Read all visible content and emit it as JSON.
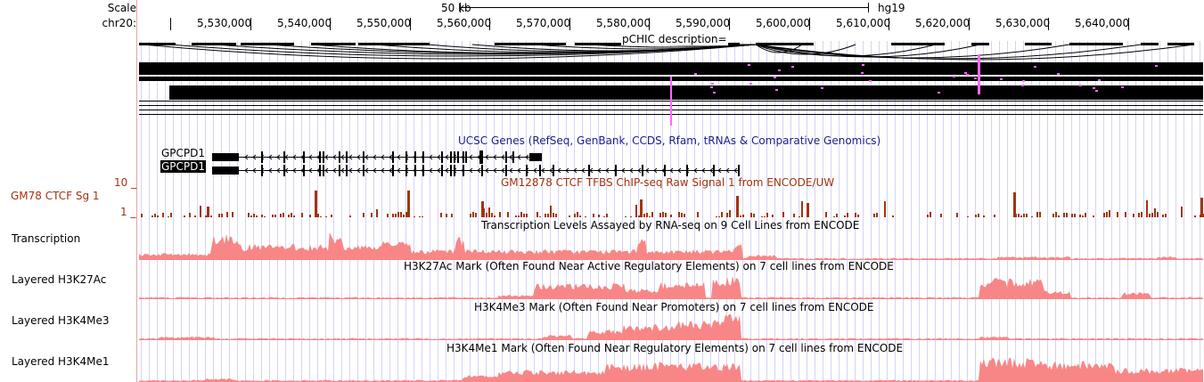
{
  "ruler": {
    "scale_label": "Scale",
    "chrom_label": "chr20:",
    "scale_bar_text": "50 kb",
    "assembly": "hg19",
    "ticks": [
      "5,530,000",
      "5,540,000",
      "5,550,000",
      "5,560,000",
      "5,570,000",
      "5,580,000",
      "5,590,000",
      "5,600,000",
      "5,610,000",
      "5,620,000",
      "5,630,000",
      "5,640,000"
    ]
  },
  "tracks": {
    "pchic": {
      "title": "pCHIC description=",
      "highlight_color": "#ff66ff"
    },
    "ucsc_genes": {
      "title": "UCSC Genes (RefSeq, GenBank, CCDS, Rfam, tRNAs & Comparative Genomics)",
      "title_color": "#1c1c8c",
      "genes": [
        "GPCPD1",
        "GPCPD1"
      ]
    },
    "ctcf": {
      "side_label": "GM78 CTCF Sg 1",
      "title": "GM12878 CTCF TFBS ChIP-seq Raw Signal 1 from ENCODE/UW",
      "color": "#a1340f",
      "y_max_label": "10 _",
      "y_min_label": "1 _"
    },
    "transcription": {
      "side_label": "Transcription",
      "title": "Transcription Levels Assayed by RNA-seq on 9 Cell Lines from ENCODE",
      "color": "#f98686"
    },
    "h3k27ac": {
      "side_label": "Layered H3K27Ac",
      "title": "H3K27Ac Mark (Often Found Near Active Regulatory Elements) on 7 cell lines from ENCODE",
      "color": "#f98686"
    },
    "h3k4me3": {
      "side_label": "Layered H3K4Me3",
      "title": "H3K4Me3 Mark (Often Found Near Promoters) on 7 cell lines from ENCODE",
      "color": "#f98686"
    },
    "h3k4me1": {
      "side_label": "Layered H3K4Me1",
      "title": "H3K4Me1 Mark (Often Found Near Regulatory Elements) on 7 cell lines from ENCODE",
      "color": "#f98686"
    }
  },
  "colors": {
    "gridline": "#d4d4f2",
    "separator": "#e8a2a2"
  }
}
